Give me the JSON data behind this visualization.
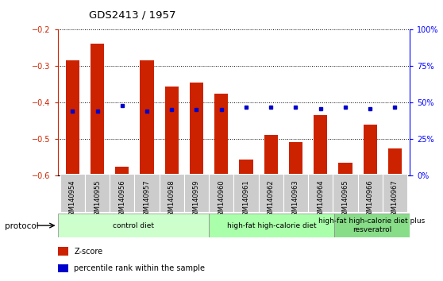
{
  "title": "GDS2413 / 1957",
  "samples": [
    "GSM140954",
    "GSM140955",
    "GSM140956",
    "GSM140957",
    "GSM140958",
    "GSM140959",
    "GSM140960",
    "GSM140961",
    "GSM140962",
    "GSM140963",
    "GSM140964",
    "GSM140965",
    "GSM140966",
    "GSM140967"
  ],
  "zscore": [
    -0.285,
    -0.238,
    -0.575,
    -0.284,
    -0.355,
    -0.345,
    -0.375,
    -0.555,
    -0.488,
    -0.508,
    -0.435,
    -0.564,
    -0.46,
    -0.525
  ],
  "percentile": [
    44,
    44,
    48,
    44,
    45,
    45,
    45,
    47,
    47,
    47,
    46,
    47,
    46,
    47
  ],
  "bar_color": "#cc2200",
  "dot_color": "#0000cc",
  "ylim_left": [
    -0.6,
    -0.2
  ],
  "ylim_right": [
    0,
    100
  ],
  "yticks_left": [
    -0.6,
    -0.5,
    -0.4,
    -0.3,
    -0.2
  ],
  "yticks_right": [
    0,
    25,
    50,
    75,
    100
  ],
  "ytick_labels_right": [
    "0%",
    "25%",
    "50%",
    "75%",
    "100%"
  ],
  "bar_bottom": -0.6,
  "groups": [
    {
      "label": "control diet",
      "start": 0,
      "end": 6,
      "color": "#ccffcc"
    },
    {
      "label": "high-fat high-calorie diet",
      "start": 6,
      "end": 11,
      "color": "#aaffaa"
    },
    {
      "label": "high-fat high-calorie diet plus\nresveratrol",
      "start": 11,
      "end": 14,
      "color": "#88dd88"
    }
  ],
  "protocol_label": "protocol",
  "legend_items": [
    {
      "color": "#cc2200",
      "label": "Z-score"
    },
    {
      "color": "#0000cc",
      "label": "percentile rank within the sample"
    }
  ],
  "bg_color": "#ffffff",
  "xtick_bg": "#cccccc"
}
